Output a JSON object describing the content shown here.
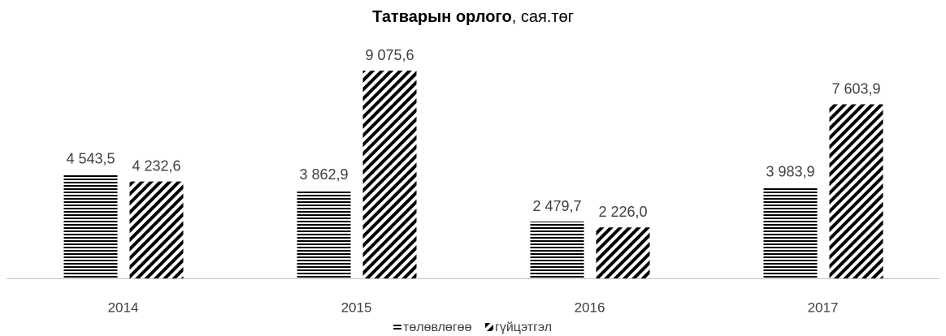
{
  "chart_data": {
    "type": "bar",
    "title": "Татварын орлого",
    "subtitle": ", сая.төг",
    "categories": [
      "2014",
      "2015",
      "2016",
      "2017"
    ],
    "series": [
      {
        "name": "төлөвлөгөө",
        "color": "#000000",
        "pattern": "horizontal",
        "values": [
          4543.5,
          3862.9,
          2479.7,
          3983.9
        ],
        "value_labels": [
          "4 543,5",
          "3 862,9",
          "2 479,7",
          "3 983,9"
        ]
      },
      {
        "name": "гүйцэтгэл",
        "color": "#000000",
        "pattern": "diagonal",
        "values": [
          4232.6,
          9075.6,
          2226.0,
          7603.9
        ],
        "value_labels": [
          "4 232,6",
          "9 075,6",
          "2 226,0",
          "7 603,9"
        ]
      }
    ],
    "legend": "bottom"
  }
}
